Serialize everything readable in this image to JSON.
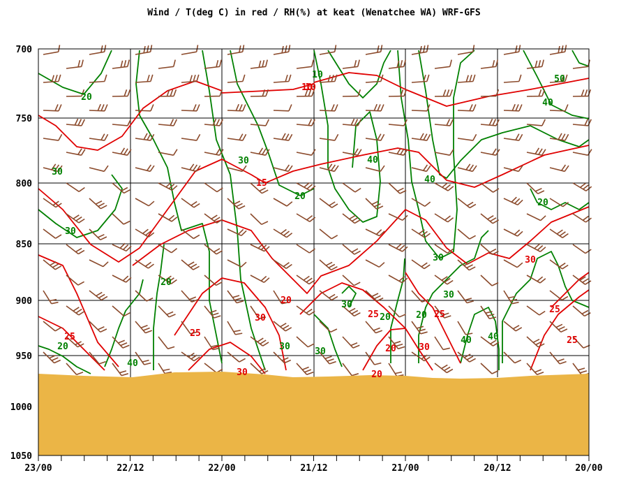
{
  "chart_data": {
    "type": "line",
    "title": "Wind / T(deg C) in red / RH(%) at keat (Wenatchee WA)  WRF-GFS",
    "xlabel": "",
    "ylabel": "",
    "x_tick_labels": [
      "23/00",
      "22/12",
      "22/00",
      "21/12",
      "21/00",
      "20/12",
      "20/00"
    ],
    "y_tick_labels": [
      "700",
      "750",
      "800",
      "850",
      "900",
      "950",
      "1000",
      "1050"
    ],
    "ylim": [
      700,
      1050
    ],
    "y_axis": "pressure (hPa), increasing downward",
    "grid": true,
    "colors": {
      "temperature": "#e00000",
      "rh": "#008000",
      "wind": "#8b4a2b",
      "ground": "#ebb546"
    },
    "temperature_contour_labels": [
      "10",
      "10",
      "15",
      "25",
      "20",
      "25",
      "25",
      "20",
      "25",
      "30",
      "30",
      "25",
      "25",
      "30",
      "30",
      "20"
    ],
    "rh_contour_labels": [
      "20",
      "10",
      "50",
      "40",
      "30",
      "30",
      "40",
      "20",
      "40",
      "20",
      "30",
      "30",
      "30",
      "30",
      "20",
      "30",
      "30",
      "20",
      "40",
      "40",
      "20",
      "20",
      "40"
    ],
    "series": [
      {
        "name": "T(deg C)",
        "kind": "isotherms"
      },
      {
        "name": "RH(%)",
        "kind": "humidity contours"
      },
      {
        "name": "Wind",
        "kind": "wind barbs"
      }
    ]
  }
}
